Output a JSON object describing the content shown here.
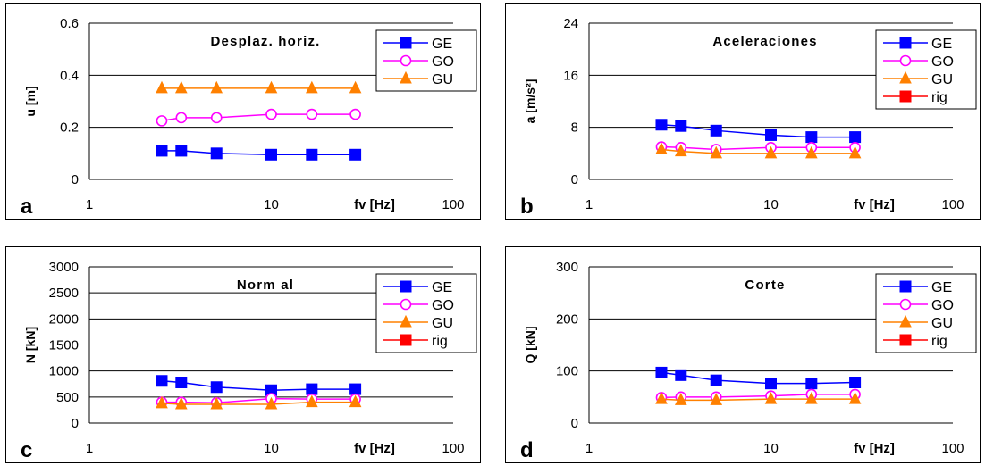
{
  "chart_data": [
    {
      "type": "line",
      "panel_letter": "a",
      "title": "Desplaz. horiz.",
      "ylabel": "u [m]",
      "xlabel": "fv [Hz]",
      "xscale": "log",
      "xlim": [
        1,
        100
      ],
      "ylim": [
        0,
        0.6
      ],
      "yticks": [
        "0",
        "0.2",
        "0.4",
        "0.6"
      ],
      "xticks": [
        "1",
        "10",
        "100"
      ],
      "grid": "horizontal",
      "legend_position": "top-right",
      "series": [
        {
          "name": "GE",
          "marker": "square",
          "color": "#0000ff",
          "x": [
            2.5,
            3.2,
            5,
            10,
            16.7,
            29
          ],
          "y": [
            0.11,
            0.11,
            0.1,
            0.095,
            0.095,
            0.095
          ]
        },
        {
          "name": "GO",
          "marker": "circle",
          "color": "#ff00ff",
          "x": [
            2.5,
            3.2,
            5,
            10,
            16.7,
            29
          ],
          "y": [
            0.225,
            0.237,
            0.237,
            0.25,
            0.25,
            0.25
          ]
        },
        {
          "name": "GU",
          "marker": "triangle",
          "color": "#ff8000",
          "x": [
            2.5,
            3.2,
            5,
            10,
            16.7,
            29
          ],
          "y": [
            0.35,
            0.35,
            0.35,
            0.35,
            0.35,
            0.35
          ]
        }
      ]
    },
    {
      "type": "line",
      "panel_letter": "b",
      "title": "Aceleraciones",
      "ylabel": "a [m/s²]",
      "xlabel": "fv [Hz]",
      "xscale": "log",
      "xlim": [
        1,
        100
      ],
      "ylim": [
        0,
        24
      ],
      "yticks": [
        "0",
        "8",
        "16",
        "24"
      ],
      "xticks": [
        "1",
        "10",
        "100"
      ],
      "grid": "horizontal",
      "legend_position": "top-right",
      "series": [
        {
          "name": "GE",
          "marker": "square",
          "color": "#0000ff",
          "x": [
            2.5,
            3.2,
            5,
            10,
            16.7,
            29
          ],
          "y": [
            8.4,
            8.2,
            7.5,
            6.8,
            6.5,
            6.5
          ]
        },
        {
          "name": "GO",
          "marker": "circle",
          "color": "#ff00ff",
          "x": [
            2.5,
            3.2,
            5,
            10,
            16.7,
            29
          ],
          "y": [
            5,
            4.9,
            4.6,
            4.9,
            4.9,
            4.9
          ]
        },
        {
          "name": "GU",
          "marker": "triangle",
          "color": "#ff8000",
          "x": [
            2.5,
            3.2,
            5,
            10,
            16.7,
            29
          ],
          "y": [
            4.6,
            4.3,
            4.0,
            4.0,
            4.0,
            4.0
          ]
        },
        {
          "name": "rig",
          "marker": "square",
          "color": "#ff0000",
          "x": [
            100
          ],
          "y": [
            20
          ]
        }
      ]
    },
    {
      "type": "line",
      "panel_letter": "c",
      "title": "Norm al",
      "ylabel": "N [kN]",
      "xlabel": "fv [Hz]",
      "xscale": "log",
      "xlim": [
        1,
        100
      ],
      "ylim": [
        0,
        3000
      ],
      "yticks": [
        "0",
        "500",
        "1000",
        "1500",
        "2000",
        "2500",
        "3000"
      ],
      "xticks": [
        "1",
        "10",
        "100"
      ],
      "grid": "horizontal",
      "legend_position": "top-right",
      "series": [
        {
          "name": "GE",
          "marker": "square",
          "color": "#0000ff",
          "x": [
            2.5,
            3.2,
            5,
            10,
            16.7,
            29
          ],
          "y": [
            810,
            780,
            690,
            630,
            650,
            650
          ]
        },
        {
          "name": "GO",
          "marker": "circle",
          "color": "#ff00ff",
          "x": [
            2.5,
            3.2,
            5,
            10,
            16.7,
            29
          ],
          "y": [
            400,
            400,
            390,
            470,
            460,
            460
          ]
        },
        {
          "name": "GU",
          "marker": "triangle",
          "color": "#ff8000",
          "x": [
            2.5,
            3.2,
            5,
            10,
            16.7,
            29
          ],
          "y": [
            380,
            360,
            360,
            360,
            400,
            400
          ]
        },
        {
          "name": "rig",
          "marker": "square",
          "color": "#ff0000",
          "x": [
            100
          ],
          "y": [
            2540
          ]
        }
      ]
    },
    {
      "type": "line",
      "panel_letter": "d",
      "title": "Corte",
      "ylabel": "Q [kN]",
      "xlabel": "fv [Hz]",
      "xscale": "log",
      "xlim": [
        1,
        100
      ],
      "ylim": [
        0,
        300
      ],
      "yticks": [
        "0",
        "100",
        "200",
        "300"
      ],
      "xticks": [
        "1",
        "10",
        "100"
      ],
      "grid": "horizontal",
      "legend_position": "top-right",
      "series": [
        {
          "name": "GE",
          "marker": "square",
          "color": "#0000ff",
          "x": [
            2.5,
            3.2,
            5,
            10,
            16.7,
            29
          ],
          "y": [
            97,
            92,
            82,
            76,
            76,
            78
          ]
        },
        {
          "name": "GO",
          "marker": "circle",
          "color": "#ff00ff",
          "x": [
            2.5,
            3.2,
            5,
            10,
            16.7,
            29
          ],
          "y": [
            49,
            50,
            50,
            52,
            55,
            55
          ]
        },
        {
          "name": "GU",
          "marker": "triangle",
          "color": "#ff8000",
          "x": [
            2.5,
            3.2,
            5,
            10,
            16.7,
            29
          ],
          "y": [
            46,
            44,
            44,
            46,
            46,
            46
          ]
        },
        {
          "name": "rig",
          "marker": "square",
          "color": "#ff0000",
          "x": [
            100
          ],
          "y": [
            257
          ]
        }
      ]
    }
  ]
}
